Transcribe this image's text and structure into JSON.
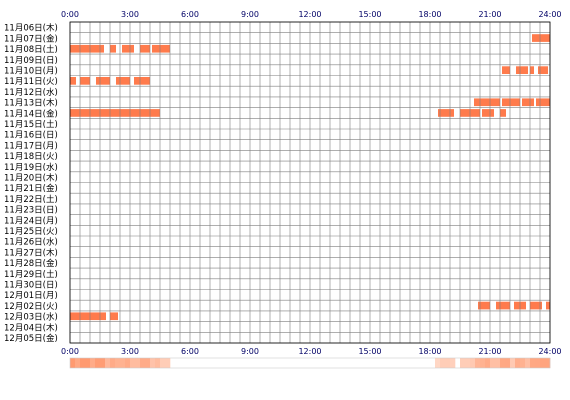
{
  "chart_data": {
    "type": "timeline",
    "x_tick_labels": [
      "0:00",
      "3:00",
      "6:00",
      "9:00",
      "12:00",
      "15:00",
      "18:00",
      "21:00",
      "24:00"
    ],
    "x_range_hours": [
      0,
      24
    ],
    "grid": true,
    "colors": {
      "bar": "#ff7b4c",
      "bar_light": "#ffb38f",
      "grid": "#7f7f7f",
      "border": "#000000",
      "summary_min": "#fff4ee",
      "summary_max": "#ff9a70",
      "tick_text": "#000066"
    },
    "rows": [
      {
        "label": "11月06日(木)",
        "segments": []
      },
      {
        "label": "11月07日(金)",
        "segments": [
          [
            23.1,
            24.0
          ]
        ]
      },
      {
        "label": "11月08日(土)",
        "segments": [
          [
            0.0,
            1.7
          ],
          [
            2.0,
            2.3
          ],
          [
            2.6,
            3.2
          ],
          [
            3.5,
            4.0
          ],
          [
            4.1,
            5.0
          ]
        ]
      },
      {
        "label": "11月09日(日)",
        "segments": []
      },
      {
        "label": "11月10日(月)",
        "segments": [
          [
            21.6,
            22.0
          ],
          [
            22.3,
            22.9
          ],
          [
            23.0,
            23.2
          ],
          [
            23.4,
            23.9
          ]
        ]
      },
      {
        "label": "11月11日(火)",
        "segments": [
          [
            0.0,
            0.3
          ],
          [
            0.5,
            1.0
          ],
          [
            1.3,
            2.0
          ],
          [
            2.3,
            3.0
          ],
          [
            3.2,
            4.0
          ]
        ]
      },
      {
        "label": "11月12日(水)",
        "segments": []
      },
      {
        "label": "11月13日(木)",
        "segments": [
          [
            20.2,
            21.5
          ],
          [
            21.6,
            22.5
          ],
          [
            22.6,
            23.2
          ],
          [
            23.3,
            24.0
          ]
        ]
      },
      {
        "label": "11月14日(金)",
        "segments": [
          [
            0.0,
            4.5
          ],
          [
            18.4,
            19.2
          ],
          [
            19.5,
            20.5
          ],
          [
            20.6,
            21.2
          ],
          [
            21.5,
            21.8
          ]
        ]
      },
      {
        "label": "11月15日(土)",
        "segments": []
      },
      {
        "label": "11月16日(日)",
        "segments": []
      },
      {
        "label": "11月17日(月)",
        "segments": []
      },
      {
        "label": "11月18日(火)",
        "segments": []
      },
      {
        "label": "11月19日(水)",
        "segments": []
      },
      {
        "label": "11月20日(木)",
        "segments": []
      },
      {
        "label": "11月21日(金)",
        "segments": []
      },
      {
        "label": "11月22日(土)",
        "segments": []
      },
      {
        "label": "11月23日(日)",
        "segments": []
      },
      {
        "label": "11月24日(月)",
        "segments": []
      },
      {
        "label": "11月25日(火)",
        "segments": []
      },
      {
        "label": "11月26日(水)",
        "segments": []
      },
      {
        "label": "11月27日(木)",
        "segments": []
      },
      {
        "label": "11月28日(金)",
        "segments": []
      },
      {
        "label": "11月29日(土)",
        "segments": []
      },
      {
        "label": "11月30日(日)",
        "segments": []
      },
      {
        "label": "12月01日(月)",
        "segments": []
      },
      {
        "label": "12月02日(火)",
        "segments": [
          [
            20.4,
            21.0
          ],
          [
            21.3,
            22.0
          ],
          [
            22.2,
            22.8
          ],
          [
            23.0,
            23.6
          ],
          [
            23.8,
            24.0
          ]
        ]
      },
      {
        "label": "12月03日(水)",
        "segments": [
          [
            0.0,
            1.8
          ],
          [
            2.0,
            2.4
          ]
        ]
      },
      {
        "label": "12月04日(木)",
        "segments": []
      },
      {
        "label": "12月05日(金)",
        "segments": []
      }
    ]
  }
}
